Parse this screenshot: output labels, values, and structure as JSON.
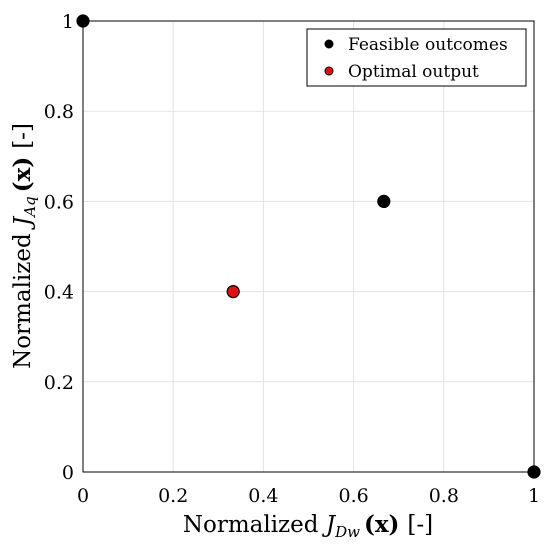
{
  "chart_data": {
    "type": "scatter",
    "x_label": {
      "pre": "Normalized ",
      "sym": "J",
      "sub": "Dw",
      "arg": "(x)",
      "unit": "[-]"
    },
    "y_label": {
      "pre": "Normalized ",
      "sym": "J",
      "sub": "Aq",
      "arg": "(x)",
      "unit": "[-]"
    },
    "xlim": [
      0,
      1
    ],
    "ylim": [
      0,
      1
    ],
    "x_ticks": [
      {
        "value": 0,
        "label": "0"
      },
      {
        "value": 0.2,
        "label": "0.2"
      },
      {
        "value": 0.4,
        "label": "0.4"
      },
      {
        "value": 0.6,
        "label": "0.6"
      },
      {
        "value": 0.8,
        "label": "0.8"
      },
      {
        "value": 1,
        "label": "1"
      }
    ],
    "y_ticks": [
      {
        "value": 0,
        "label": "0"
      },
      {
        "value": 0.2,
        "label": "0.2"
      },
      {
        "value": 0.4,
        "label": "0.4"
      },
      {
        "value": 0.6,
        "label": "0.6"
      },
      {
        "value": 0.8,
        "label": "0.8"
      },
      {
        "value": 1,
        "label": "1"
      }
    ],
    "grid": true,
    "legend_position": "top-right",
    "series": [
      {
        "name": "Feasible outcomes",
        "color": "#000000",
        "points": [
          {
            "x": 0,
            "y": 1
          },
          {
            "x": 0.667,
            "y": 0.6
          },
          {
            "x": 1,
            "y": 0
          }
        ]
      },
      {
        "name": "Optimal output",
        "color": "#e01010",
        "points": [
          {
            "x": 0.333,
            "y": 0.4
          }
        ]
      }
    ]
  }
}
